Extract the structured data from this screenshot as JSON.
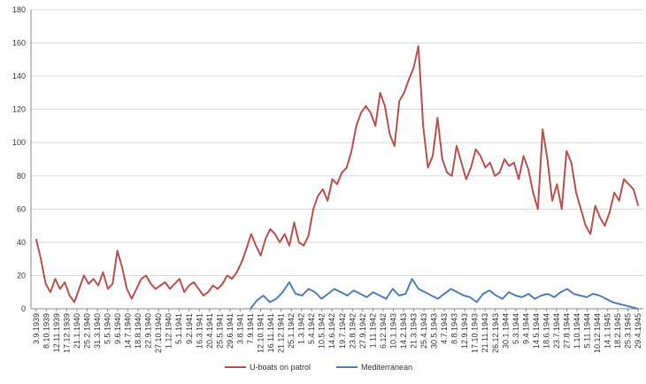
{
  "chart_data": {
    "type": "line",
    "title": "",
    "xlabel": "",
    "ylabel": "",
    "ylim": [
      0,
      180
    ],
    "yticks": [
      0,
      20,
      40,
      60,
      80,
      100,
      120,
      140,
      160,
      180
    ],
    "grid": true,
    "legend_position": "bottom",
    "x_ticks": [
      "3.9.1939",
      "8.10.1939",
      "12.11.1939",
      "17.12.1939",
      "21.1.1940",
      "25.2.1940",
      "31.3.1940",
      "5.5.1940",
      "9.6.1940",
      "14.7.1940",
      "18.8.1940",
      "22.9.1940",
      "27.10.1940",
      "1.12.1940",
      "5.1.1941",
      "9.2.1941",
      "16.3.1941",
      "20.4.1941",
      "25.5.1941",
      "29.6.1941",
      "3.8.1941",
      "7.9.1941",
      "12.10.1941",
      "16.11.1941",
      "21.12.1941",
      "25.1.1942",
      "1.3.1942",
      "5.4.1942",
      "10.5.1942",
      "14.6.1942",
      "19.7.1942",
      "23.8.1942",
      "27.9.1942",
      "1.11.1942",
      "6.12.1942",
      "10.1.1943",
      "14.2.1943",
      "21.3.1943",
      "25.4.1943",
      "30.5.1943",
      "4.7.1943",
      "8.8.1943",
      "12.9.1943",
      "17.10.1943",
      "21.11.1943",
      "26.12.1943",
      "30.1.1944",
      "5.3.1944",
      "9.4.1944",
      "14.5.1944",
      "18.6.1944",
      "23.7.1944",
      "27.8.1944",
      "1.10.1944",
      "5.11.1944",
      "10.12.1944",
      "14.1.1945",
      "18.2.1945",
      "25.3.1945",
      "29.4.1945"
    ],
    "series": [
      {
        "name": "U-boats on patrol",
        "color": "#c0504d",
        "values": [
          42,
          30,
          15,
          10,
          18,
          12,
          16,
          8,
          4,
          12,
          20,
          15,
          18,
          14,
          22,
          12,
          15,
          35,
          25,
          12,
          6,
          12,
          18,
          20,
          15,
          12,
          14,
          16,
          12,
          15,
          18,
          10,
          14,
          16,
          12,
          8,
          10,
          14,
          12,
          15,
          20,
          18,
          22,
          28,
          36,
          45,
          38,
          32,
          42,
          48,
          45,
          40,
          45,
          38,
          52,
          40,
          38,
          44,
          60,
          68,
          72,
          65,
          78,
          75,
          82,
          85,
          95,
          110,
          118,
          122,
          118,
          110,
          130,
          122,
          105,
          98,
          125,
          130,
          138,
          145,
          158,
          110,
          85,
          92,
          115,
          90,
          82,
          80,
          98,
          88,
          78,
          85,
          96,
          92,
          85,
          88,
          80,
          82,
          90,
          86,
          88,
          78,
          92,
          84,
          70,
          60,
          108,
          90,
          65,
          75,
          60,
          95,
          88,
          70,
          60,
          50,
          45,
          62,
          55,
          50,
          58,
          70,
          65,
          78,
          75,
          72,
          62
        ]
      },
      {
        "name": "Mediterranean",
        "color": "#4f81bd",
        "x_start": "7.9.1941",
        "values": [
          0,
          5,
          8,
          4,
          6,
          10,
          16,
          9,
          8,
          12,
          10,
          6,
          9,
          12,
          10,
          8,
          11,
          9,
          7,
          10,
          8,
          6,
          12,
          8,
          9,
          18,
          12,
          10,
          8,
          6,
          9,
          12,
          10,
          8,
          7,
          4,
          9,
          11,
          8,
          6,
          10,
          8,
          7,
          9,
          6,
          8,
          9,
          7,
          10,
          12,
          9,
          8,
          7,
          9,
          8,
          6,
          4,
          3,
          2,
          1,
          0
        ]
      }
    ]
  }
}
